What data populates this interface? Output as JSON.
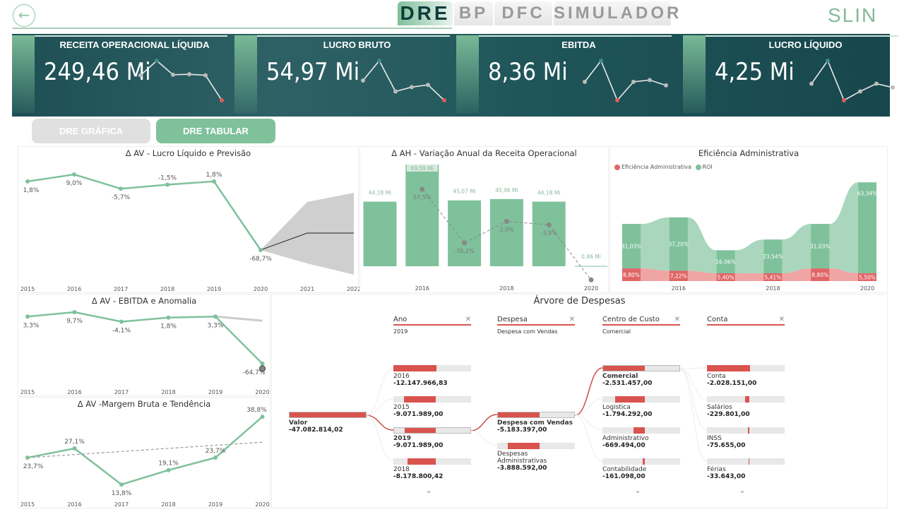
{
  "nav": {
    "tabs": [
      {
        "label": "DRE",
        "active": true
      },
      {
        "label": "BP"
      },
      {
        "label": "DFC"
      },
      {
        "label": "SIMULADOR"
      }
    ],
    "logo": "SLIN"
  },
  "colors": {
    "accent": "#7fc19b",
    "teal": "#1f5559",
    "red": "#d9534f",
    "gray_btn": "#e0e0e0"
  },
  "kpis": [
    {
      "title": "RECEITA OPERACIONAL LÍQUIDA",
      "value": "249,46 Mi",
      "sparkline": [
        44.18,
        69.59,
        45.07,
        45.96,
        44.18,
        0.46
      ],
      "highlight": 5
    },
    {
      "title": "LUCRO BRUTO",
      "value": "54,97 Mi",
      "sparkline": [
        10,
        19,
        5,
        7,
        8,
        1
      ],
      "highlight": 5
    },
    {
      "title": "EBITDA",
      "value": "8,36 Mi",
      "sparkline": [
        1.5,
        3.9,
        -0.6,
        1.5,
        1.7,
        1.1
      ],
      "highlight": 2
    },
    {
      "title": "LUCRO LÍQUIDO",
      "value": "4,25 Mi",
      "sparkline": [
        0.8,
        2.6,
        -0.5,
        0.2,
        0.8,
        0.5
      ],
      "highlight": 2
    }
  ],
  "buttons": {
    "grafica": "DRE GRÁFICA",
    "tabular": "DRE TABULAR"
  },
  "chart_data": [
    {
      "id": "lucro",
      "type": "line",
      "title": "Δ AV - Lucro Líquido e Previsão",
      "x": [
        "2015",
        "2016",
        "2017",
        "2018",
        "2019",
        "2020",
        "2021",
        "2022"
      ],
      "values": [
        1.8,
        9.0,
        -5.7,
        -1.5,
        1.8,
        -68.7
      ],
      "labels": [
        "1,8%",
        "9,0%",
        "-5,7%",
        "-1,5%",
        "1,8%",
        "-68,7%"
      ],
      "forecast": {
        "x": [
          "2020",
          "2021",
          "2022"
        ],
        "mid": [
          -68.7,
          -51.3,
          -51.3
        ],
        "upper": [
          -68.7,
          -19.3,
          -9.9
        ],
        "lower": [
          -68.7,
          -82.5,
          -94.0
        ]
      }
    },
    {
      "id": "ah",
      "type": "bar",
      "title": "Δ AH - Variação Anual da Receita Operacional",
      "categories": [
        "2015",
        "2016",
        "2017",
        "2018",
        "2019",
        "2020"
      ],
      "xticks": [
        "2016",
        "2018",
        "2020"
      ],
      "values": [
        44.18,
        69.59,
        45.07,
        45.96,
        44.18,
        0.46
      ],
      "bar_labels": [
        "44,18 Mi",
        "69,59 Mi",
        "45,07 Mi",
        "45,96 Mi",
        "44,18 Mi",
        "0,46 Mi"
      ],
      "line": [
        null,
        57.5,
        -35.2,
        2.0,
        -3.9,
        -99.0
      ],
      "line_labels": [
        "",
        "57,5%",
        "-35,2%",
        "2,0%",
        "-3,9%",
        ""
      ]
    },
    {
      "id": "efic",
      "type": "area",
      "title": "Eficiência Administrativa",
      "categories": [
        "2015",
        "2016",
        "2017",
        "2018",
        "2019",
        "2020"
      ],
      "xticks": [
        "2016",
        "2018",
        "2020"
      ],
      "series": [
        {
          "name": "Eficiência Administrativa",
          "values": [
            8.8,
            7.22,
            5.4,
            5.41,
            8.8,
            5.5
          ],
          "labels": [
            "8,80%",
            "7,22%",
            "5,40%",
            "5,41%",
            "8,80%",
            "5,50%"
          ],
          "color": "#e06666"
        },
        {
          "name": "ROI",
          "values": [
            31.03,
            37.2,
            16.06,
            23.54,
            31.03,
            63.34
          ],
          "labels": [
            "31,03%",
            "37,20%",
            "16,06%",
            "23,54%",
            "31,03%",
            "63,34%"
          ],
          "color": "#7fc19b"
        }
      ]
    },
    {
      "id": "ebitda",
      "type": "line",
      "title": "Δ AV - EBITDA e Anomalia",
      "x": [
        "2015",
        "2016",
        "2017",
        "2018",
        "2019",
        "2020"
      ],
      "values": [
        3.3,
        9.7,
        -4.1,
        1.8,
        3.3,
        -64.7
      ],
      "labels": [
        "3,3%",
        "9,7%",
        "-4,1%",
        "1,8%",
        "3,3%",
        "-64,7%"
      ],
      "expected": [
        3.3,
        -2.7
      ]
    },
    {
      "id": "margem",
      "type": "line",
      "title": "Δ AV -Margem Bruta e Tendência",
      "x": [
        "2015",
        "2016",
        "2017",
        "2018",
        "2019",
        "2020"
      ],
      "values": [
        23.7,
        27.1,
        13.8,
        19.1,
        23.7,
        38.8
      ],
      "labels": [
        "23,7%",
        "27,1%",
        "13,8%",
        "19,1%",
        "23,7%",
        "38,8%"
      ],
      "trend": [
        23.7,
        29.4
      ]
    }
  ],
  "tree": {
    "title": "Árvore de Despesas",
    "root": {
      "label": "Valor",
      "value": "-47.082.814,02"
    },
    "columns": [
      {
        "header": "Ano",
        "selected": "2019",
        "nodes": [
          {
            "label": "2016",
            "value": "-12.147.966,83",
            "v": 12147966
          },
          {
            "label": "2015",
            "value": "-9.071.989,00",
            "v": 9071989
          },
          {
            "label": "2019",
            "value": "-9.071.989,00",
            "v": 9071989,
            "sel": true
          },
          {
            "label": "2018",
            "value": "-8.178.800,42",
            "v": 8178800
          }
        ],
        "more": true
      },
      {
        "header": "Despesa",
        "selected": "Despesa com Vendas",
        "nodes": [
          {
            "label": "Despesa com Vendas",
            "value": "-5.183.397,00",
            "v": 5183397,
            "sel": true
          },
          {
            "label": "Despesas Administrativas",
            "value": "-3.888.592,00",
            "v": 3888592
          }
        ]
      },
      {
        "header": "Centro de Custo",
        "selected": "Comercial",
        "nodes": [
          {
            "label": "Comercial",
            "value": "-2.531.457,00",
            "v": 2531457,
            "sel": true
          },
          {
            "label": "Logistica",
            "value": "-1.794.292,00",
            "v": 1794292
          },
          {
            "label": "Administrativo",
            "value": "-669.494,00",
            "v": 669494
          },
          {
            "label": "Contabilidade",
            "value": "-161.098,00",
            "v": 161098
          }
        ],
        "more": true
      },
      {
        "header": "Conta",
        "selected": "",
        "nodes": [
          {
            "label": "Conta",
            "value": "-2.028.151,00",
            "v": 2028151
          },
          {
            "label": "Salários",
            "value": "-229.801,00",
            "v": 229801
          },
          {
            "label": "INSS",
            "value": "-75.655,00",
            "v": 75655
          },
          {
            "label": "Férias",
            "value": "-33.643,00",
            "v": 33643
          }
        ],
        "more": true
      }
    ]
  }
}
